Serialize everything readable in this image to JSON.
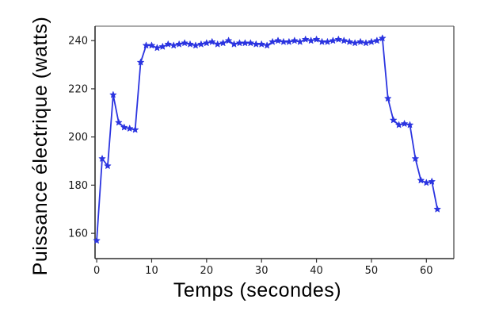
{
  "figure": {
    "background": "#ffffff"
  },
  "chart_data": {
    "type": "line",
    "title": "",
    "xlabel": "Temps (secondes)",
    "ylabel": "Puissance électrique (watts)",
    "legend_position": "none",
    "grid": false,
    "line_color": "#2b34e0",
    "marker": "star-5",
    "marker_color": "#2b34e0",
    "spine_colors": {
      "top": "#8f8f8f",
      "right": "#5a5a5a",
      "bottom": "#2f2f2f",
      "left": "#2f2f2f"
    },
    "tick_color": "#333333",
    "xticks": [
      0,
      10,
      20,
      30,
      40,
      50,
      60
    ],
    "yticks": [
      160,
      180,
      200,
      220,
      240
    ],
    "xlim": [
      -0.3,
      65
    ],
    "ylim": [
      149.5,
      246
    ],
    "series": [
      {
        "name": "puissance-electrique",
        "x": [
          0,
          1,
          2,
          3,
          4,
          5,
          6,
          7,
          8,
          9,
          10,
          11,
          12,
          13,
          14,
          15,
          16,
          17,
          18,
          19,
          20,
          21,
          22,
          23,
          24,
          25,
          26,
          27,
          28,
          29,
          30,
          31,
          32,
          33,
          34,
          35,
          36,
          37,
          38,
          39,
          40,
          41,
          42,
          43,
          44,
          45,
          46,
          47,
          48,
          49,
          50,
          51,
          52,
          53,
          54,
          55,
          56,
          57,
          58,
          59,
          60,
          61,
          62
        ],
        "values": [
          157,
          191,
          188,
          217.5,
          206,
          204,
          203.5,
          203,
          231,
          238,
          238,
          237,
          237.5,
          238.5,
          238,
          238.5,
          239,
          238.5,
          238,
          238.5,
          239,
          239.5,
          238.5,
          239,
          240,
          238.5,
          239,
          239,
          239,
          238.5,
          238.5,
          238,
          239.5,
          240,
          239.5,
          239.5,
          240,
          239.5,
          240.5,
          240,
          240.5,
          239.5,
          239.5,
          240,
          240.5,
          240,
          239.5,
          239,
          239.5,
          239,
          239.5,
          240,
          241,
          216,
          207,
          205,
          205.5,
          205,
          191,
          182,
          181,
          181.5,
          170
        ]
      }
    ]
  }
}
